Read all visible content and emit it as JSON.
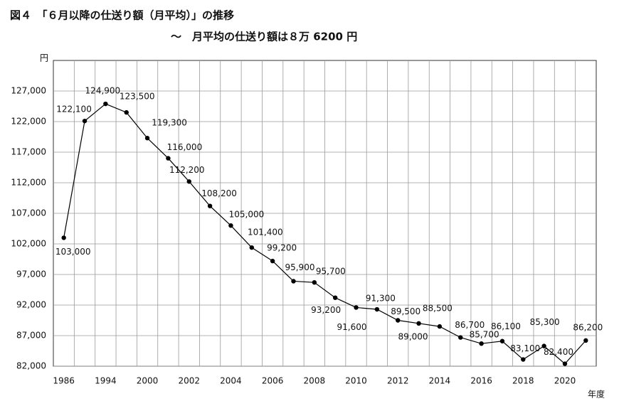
{
  "chart_data": {
    "type": "line",
    "title": "図４　「６月以降の仕送り額（月平均）」の推移",
    "subtitle": "～　月平均の仕送り額は８万 6200 円",
    "y_axis_label": "円",
    "x_axis_label": "年度",
    "categories": [
      "1986",
      null,
      "1994",
      null,
      "2000",
      null,
      "2002",
      null,
      "2004",
      null,
      "2006",
      null,
      "2008",
      null,
      "2010",
      null,
      "2012",
      null,
      "2014",
      null,
      "2016",
      null,
      "2018",
      null,
      "2020",
      null
    ],
    "series": [
      {
        "color": "#000000",
        "values": [
          103000,
          122100,
          124900,
          123500,
          119300,
          116000,
          112200,
          108200,
          105000,
          101400,
          99200,
          95900,
          95700,
          93200,
          91600,
          91300,
          89500,
          89000,
          88500,
          86700,
          85700,
          86100,
          83100,
          85300,
          82400,
          86200
        ],
        "value_labels": [
          "103,000",
          "122,100",
          "124,900",
          "123,500",
          "119,300",
          "116,000",
          "112,200",
          "108,200",
          "105,000",
          "101,400",
          "99,200",
          "95,900",
          "95,700",
          "93,200",
          "91,600",
          "91,300",
          "89,500",
          "89,000",
          "88,500",
          "86,700",
          "85,700",
          "86,100",
          "83,100",
          "85,300",
          "82,400",
          "86,200"
        ]
      }
    ],
    "ylim": [
      82000,
      132000
    ],
    "yticks": [
      {
        "value": 82000,
        "label": "82,000"
      },
      {
        "value": 87000,
        "label": "87,000"
      },
      {
        "value": 92000,
        "label": "92,000"
      },
      {
        "value": 97000,
        "label": "97,000"
      },
      {
        "value": 102000,
        "label": "102,000"
      },
      {
        "value": 107000,
        "label": "107,000"
      },
      {
        "value": 112000,
        "label": "112,000"
      },
      {
        "value": 117000,
        "label": "117,000"
      },
      {
        "value": 122000,
        "label": "122,000"
      },
      {
        "value": 127000,
        "label": "127,000"
      }
    ],
    "grid": true
  }
}
